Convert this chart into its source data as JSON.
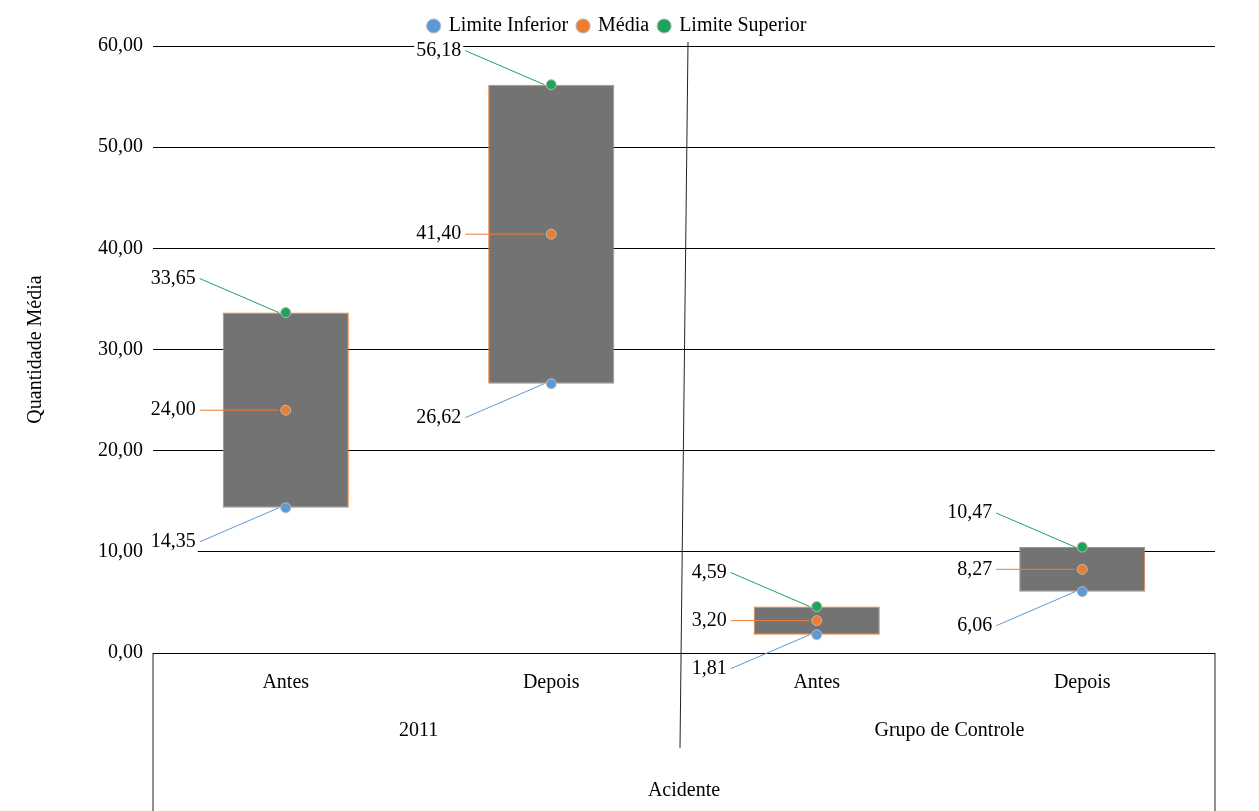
{
  "chart_data": {
    "type": "bar",
    "ylabel": "Quantidade Média",
    "xlabel": "Acidente",
    "categories": [
      "Antes",
      "Depois",
      "Antes",
      "Depois"
    ],
    "annotations": [
      "2011",
      "Grupo de Controle"
    ],
    "series": [
      {
        "color": "#737373",
        "base": [
          14.35,
          26.62,
          1.81,
          6.06
        ],
        "values": [
          19.3,
          29.56,
          2.78,
          4.41
        ]
      },
      {
        "type": "scatter",
        "name": "Limite Inferior",
        "color": "#5b9bd5",
        "values": [
          14.35,
          26.62,
          1.81,
          6.06
        ],
        "value_labels": [
          "14,35",
          "26,62",
          "1,81",
          "6,06"
        ]
      },
      {
        "type": "scatter",
        "name": "Média",
        "color": "#ed7d31",
        "values": [
          24.0,
          41.4,
          3.2,
          8.27
        ],
        "value_labels": [
          "24,00",
          "41,40",
          "3,20",
          "8,27"
        ]
      },
      {
        "type": "scatter",
        "name": "Limite Superior",
        "color": "#1fa35a",
        "values": [
          33.65,
          56.18,
          4.59,
          10.47
        ],
        "value_labels": [
          "33,65",
          "56,18",
          "4,59",
          "10,47"
        ]
      }
    ],
    "ylim": [
      0,
      60
    ],
    "yticks": [
      {
        "value": 0,
        "label": "0,00"
      },
      {
        "value": 10,
        "label": "10,00"
      },
      {
        "value": 20,
        "label": "20,00"
      },
      {
        "value": 30,
        "label": "30,00"
      },
      {
        "value": 40,
        "label": "40,00"
      },
      {
        "value": 50,
        "label": "50,00"
      },
      {
        "value": 60,
        "label": "60,00"
      }
    ],
    "grid": "y",
    "legend": "top",
    "marker": "circle"
  }
}
